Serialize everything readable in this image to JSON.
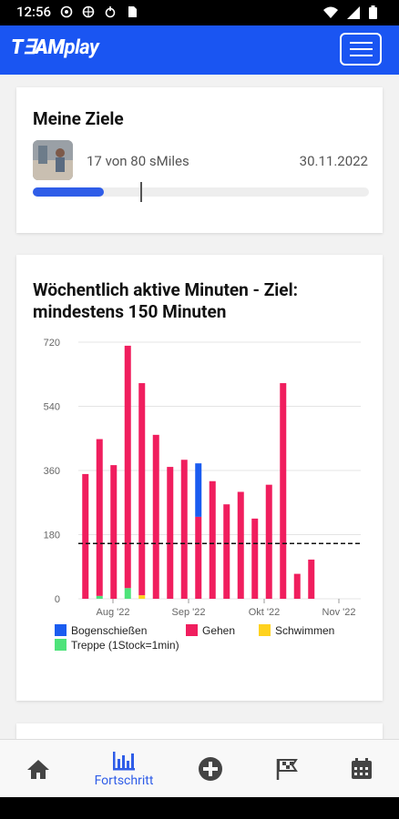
{
  "status_bar": {
    "time": "12:56"
  },
  "app": {
    "logo_team": "T∃AM",
    "logo_play": "play"
  },
  "goals_card": {
    "title": "Meine Ziele",
    "progress_text": "17 von 80 sMiles",
    "date": "30.11.2022",
    "progress_fraction": 0.2125,
    "target_marker_fraction": 0.32
  },
  "chart_card": {
    "title_line1": "Wöchentlich aktive Minuten - Ziel:",
    "title_line2": "mindestens 150 Minuten"
  },
  "chart_data": {
    "type": "bar",
    "stacked": true,
    "ylim": [
      0,
      720
    ],
    "yticks": [
      "0",
      "180",
      "360",
      "540",
      "720"
    ],
    "xticklabels": [
      "Aug '22",
      "Sep '22",
      "Okt '22",
      "Nov '22"
    ],
    "target_line": 155,
    "series": [
      {
        "name": "Bogenschießen",
        "color": "#1a5cf0",
        "values": [
          0,
          0,
          0,
          0,
          0,
          0,
          0,
          0,
          150,
          0,
          0,
          0,
          0,
          0,
          0,
          0,
          0,
          0,
          0,
          0
        ]
      },
      {
        "name": "Gehen",
        "color": "#f01e5e",
        "values": [
          350,
          440,
          375,
          680,
          595,
          460,
          370,
          390,
          230,
          330,
          265,
          300,
          225,
          320,
          605,
          70,
          110,
          0,
          0,
          0
        ]
      },
      {
        "name": "Schwimmen",
        "color": "#ffd21e",
        "values": [
          0,
          0,
          0,
          0,
          10,
          0,
          0,
          0,
          0,
          0,
          0,
          0,
          0,
          0,
          0,
          0,
          0,
          0,
          0,
          0
        ]
      },
      {
        "name": "Treppe (1Stock=1min)",
        "color": "#4ee37a",
        "values": [
          0,
          8,
          0,
          30,
          0,
          0,
          0,
          0,
          0,
          0,
          0,
          0,
          0,
          0,
          0,
          0,
          0,
          0,
          0,
          0
        ]
      }
    ],
    "legend": {
      "position": "bottom"
    }
  },
  "nav": {
    "active_label": "Fortschritt",
    "icons": [
      "home-icon",
      "chart-icon",
      "add-circle-icon",
      "flags-icon",
      "calendar-icon"
    ]
  },
  "colors": {
    "brand": "#1a55f2",
    "accent": "#2f5de8"
  }
}
